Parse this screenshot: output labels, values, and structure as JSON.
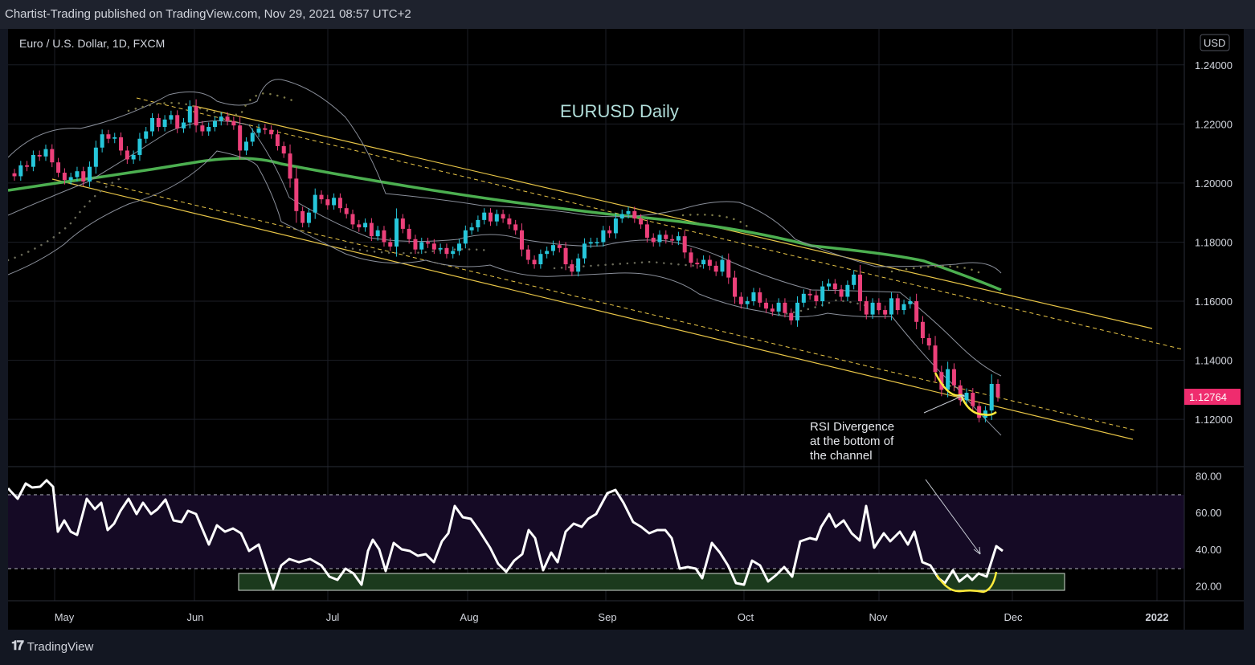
{
  "header": {
    "publish_line": "Chartist-Trading published on TradingView.com, Nov 29, 2021 08:57 UTC+2"
  },
  "footer": {
    "brand": "TradingView"
  },
  "chart_data": {
    "type": "candlestick",
    "symbol_line": "Euro / U.S. Dollar, 1D, FXCM",
    "currency_badge": "USD",
    "title": "EURUSD Daily",
    "last_price_label": "1.12764",
    "annotation": [
      "RSI Divergence",
      "at the bottom of",
      "the channel"
    ],
    "price_axis": {
      "ticks": [
        "1.24000",
        "1.22000",
        "1.20000",
        "1.18000",
        "1.16000",
        "1.14000",
        "1.12000"
      ],
      "range": [
        1.104,
        1.25
      ]
    },
    "rsi_axis": {
      "ticks": [
        "80.00",
        "60.00",
        "40.00",
        "20.00"
      ],
      "range": [
        12,
        85
      ],
      "upper_band": 70,
      "lower_band": 30
    },
    "time_axis": {
      "ticks": [
        "May",
        "Jun",
        "Jul",
        "Aug",
        "Sep",
        "Oct",
        "Nov",
        "Dec",
        "2022"
      ]
    },
    "close": [
      1.2023,
      1.206,
      1.2055,
      1.2095,
      1.209,
      1.2115,
      1.207,
      1.2035,
      1.201,
      1.202,
      1.204,
      1.2005,
      1.2055,
      1.212,
      1.2165,
      1.215,
      1.2155,
      1.211,
      1.208,
      1.2095,
      1.215,
      1.2175,
      1.222,
      1.219,
      1.2215,
      1.223,
      1.2185,
      1.2205,
      1.226,
      1.2195,
      1.2175,
      1.219,
      1.221,
      1.2225,
      1.221,
      1.2195,
      1.211,
      1.214,
      1.217,
      1.2185,
      1.218,
      1.2165,
      1.2125,
      1.21,
      1.2015,
      1.1905,
      1.1865,
      1.19,
      1.196,
      1.1945,
      1.1925,
      1.195,
      1.1915,
      1.1895,
      1.186,
      1.185,
      1.1865,
      1.182,
      1.184,
      1.18,
      1.1785,
      1.188,
      1.1845,
      1.181,
      1.1775,
      1.18,
      1.1795,
      1.1775,
      1.178,
      1.176,
      1.177,
      1.1795,
      1.184,
      1.185,
      1.1875,
      1.19,
      1.187,
      1.1895,
      1.188,
      1.186,
      1.184,
      1.1775,
      1.174,
      1.1725,
      1.176,
      1.177,
      1.179,
      1.178,
      1.1725,
      1.17,
      1.1745,
      1.1795,
      1.18,
      1.18,
      1.184,
      1.183,
      1.188,
      1.1895,
      1.1905,
      1.188,
      1.186,
      1.1815,
      1.18,
      1.1825,
      1.181,
      1.1805,
      1.182,
      1.1765,
      1.173,
      1.1725,
      1.174,
      1.172,
      1.17,
      1.174,
      1.168,
      1.1615,
      1.159,
      1.16,
      1.163,
      1.1595,
      1.1575,
      1.1565,
      1.1595,
      1.156,
      1.1535,
      1.1595,
      1.1625,
      1.162,
      1.16,
      1.165,
      1.166,
      1.164,
      1.1615,
      1.1655,
      1.169,
      1.16,
      1.1555,
      1.1595,
      1.157,
      1.1555,
      1.161,
      1.157,
      1.159,
      1.16,
      1.153,
      1.1475,
      1.145,
      1.136,
      1.13,
      1.137,
      1.1315,
      1.1265,
      1.129,
      1.1245,
      1.1205,
      1.123,
      1.132,
      1.1276
    ]
  }
}
